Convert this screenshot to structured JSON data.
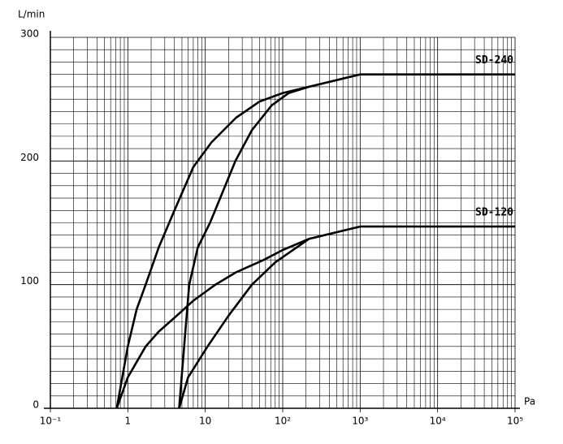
{
  "chart_data": {
    "type": "line",
    "y_label": "L/min",
    "x_label": "Pa",
    "xlim": [
      0.1,
      100000
    ],
    "ylim": [
      0,
      300
    ],
    "log_x": true,
    "grid": true,
    "color": "#000000",
    "xticks": [
      {
        "value": 0.1,
        "label": "10⁻¹"
      },
      1,
      10,
      {
        "value": 100,
        "label": "10²"
      },
      {
        "value": 1000,
        "label": "10³"
      },
      {
        "value": 10000,
        "label": "10⁴"
      },
      {
        "value": 100000,
        "label": "10⁵"
      }
    ],
    "yticks": [
      0,
      100,
      200,
      300
    ],
    "series": [
      {
        "name": "SD-240",
        "curves": [
          {
            "x": [
              0.72,
              1,
              1.3,
              1.7,
              2.5,
              4,
              7,
              12,
              25,
              50,
              100,
              218,
              1000,
              100000
            ],
            "values": [
              0,
              50,
              80,
              100,
              130,
              160,
              195,
              215,
              235,
              248,
              255,
              260,
              270,
              270
            ]
          },
          {
            "x": [
              4.6,
              5.5,
              6.2,
              8,
              11.5,
              24.5,
              40,
              72,
              120,
              218
            ],
            "values": [
              0,
              60,
              100,
              130,
              150,
              200,
              225,
              245,
              255,
              260
            ]
          }
        ]
      },
      {
        "name": "SD-120",
        "curves": [
          {
            "x": [
              0.72,
              1,
              1.7,
              2.5,
              4.3,
              7,
              13.5,
              25,
              57,
              100,
              218,
              1000,
              100000
            ],
            "values": [
              0,
              25,
              50,
              62,
              75,
              87,
              100,
              110,
              120,
              128,
              137,
              147,
              147
            ]
          },
          {
            "x": [
              4.6,
              6,
              10.7,
              20,
              40,
              80,
              218
            ],
            "values": [
              0,
              25,
              50,
              75,
              100,
              118,
              137
            ]
          }
        ]
      }
    ]
  }
}
